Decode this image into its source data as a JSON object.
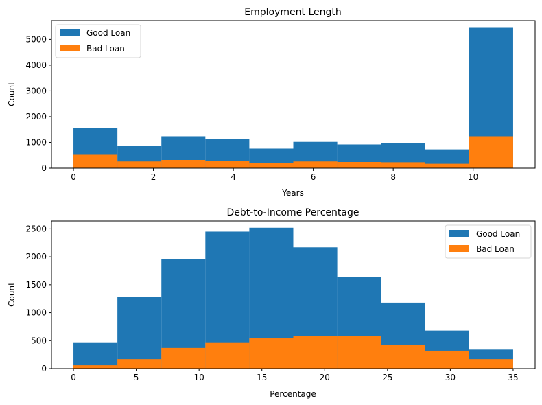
{
  "colors": {
    "good": "#1f77b4",
    "bad": "#ff7f0e"
  },
  "chart_data": [
    {
      "type": "bar",
      "title": "Employment Length",
      "xlabel": "Years",
      "ylabel": "Count",
      "xlim": [
        -0.55,
        11.55
      ],
      "ylim": [
        0,
        5730
      ],
      "xticks": [
        0,
        2,
        4,
        6,
        8,
        10
      ],
      "yticks": [
        0,
        1000,
        2000,
        3000,
        4000,
        5000
      ],
      "bin_edges": [
        0,
        1.1,
        2.2,
        3.3,
        4.4,
        5.5,
        6.6,
        7.7,
        8.8,
        9.9,
        11
      ],
      "legend_position": "top-left",
      "series": [
        {
          "name": "Good Loan",
          "color": "#1f77b4",
          "values": [
            1560,
            870,
            1240,
            1130,
            760,
            1020,
            920,
            980,
            730,
            5450
          ]
        },
        {
          "name": "Bad Loan",
          "color": "#ff7f0e",
          "values": [
            520,
            260,
            320,
            280,
            200,
            260,
            240,
            230,
            170,
            1240
          ]
        }
      ]
    },
    {
      "type": "bar",
      "title": "Debt-to-Income Percentage",
      "xlabel": "Percentage",
      "ylabel": "Count",
      "xlim": [
        -1.75,
        36.75
      ],
      "ylim": [
        0,
        2640
      ],
      "xticks": [
        0,
        5,
        10,
        15,
        20,
        25,
        30,
        35
      ],
      "yticks": [
        0,
        500,
        1000,
        1500,
        2000,
        2500
      ],
      "bin_edges": [
        0,
        3.5,
        7,
        10.5,
        14,
        17.5,
        21,
        24.5,
        28,
        31.5,
        35
      ],
      "legend_position": "top-right",
      "series": [
        {
          "name": "Good Loan",
          "color": "#1f77b4",
          "values": [
            470,
            1280,
            1960,
            2450,
            2520,
            2170,
            1640,
            1180,
            680,
            340
          ]
        },
        {
          "name": "Bad Loan",
          "color": "#ff7f0e",
          "values": [
            60,
            170,
            370,
            470,
            540,
            580,
            580,
            430,
            320,
            170
          ]
        }
      ]
    }
  ]
}
